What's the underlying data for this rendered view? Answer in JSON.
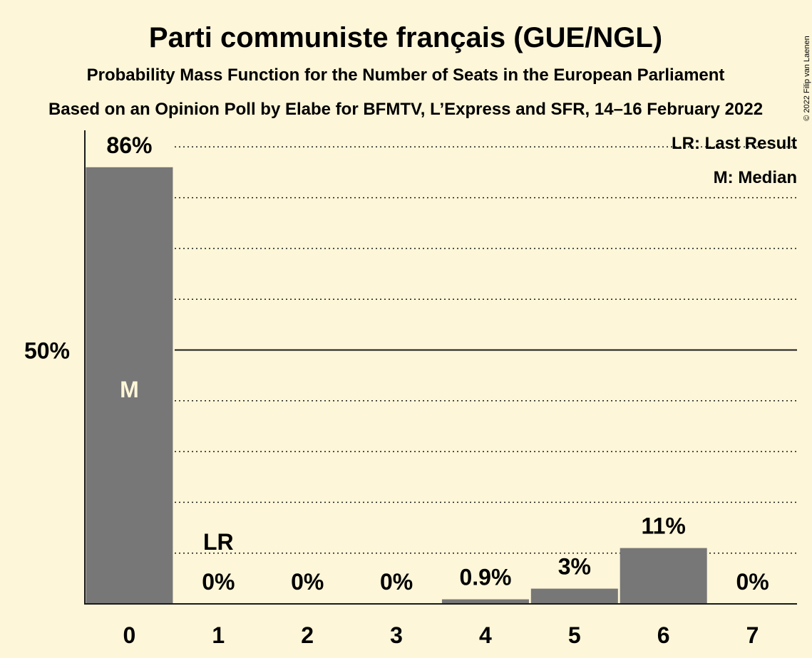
{
  "chart_data": {
    "type": "bar",
    "title": "Parti communiste français (GUE/NGL)",
    "subtitle": "Probability Mass Function for the Number of Seats in the European Parliament",
    "subtitle2": "Based on an Opinion Poll by Elabe for BFMTV, L’Express and SFR, 14–16 February 2022",
    "categories": [
      "0",
      "1",
      "2",
      "3",
      "4",
      "5",
      "6",
      "7"
    ],
    "values": [
      86,
      0,
      0,
      0,
      0.9,
      3,
      11,
      0
    ],
    "value_labels": [
      "86%",
      "0%",
      "0%",
      "0%",
      "0.9%",
      "3%",
      "11%",
      "0%"
    ],
    "ylim": [
      0,
      93
    ],
    "y_tick_label": "50%",
    "y_tick_value": 50,
    "grid": true,
    "grid_step": 10,
    "last_result_index": 1,
    "last_result_label": "LR",
    "median_index": 0,
    "median_label": "M",
    "legend": [
      "LR: Last Result",
      "M: Median"
    ],
    "legend_position": "top-right",
    "bar_color": "#777777",
    "copyright": "© 2022 Filip van Laenen"
  }
}
